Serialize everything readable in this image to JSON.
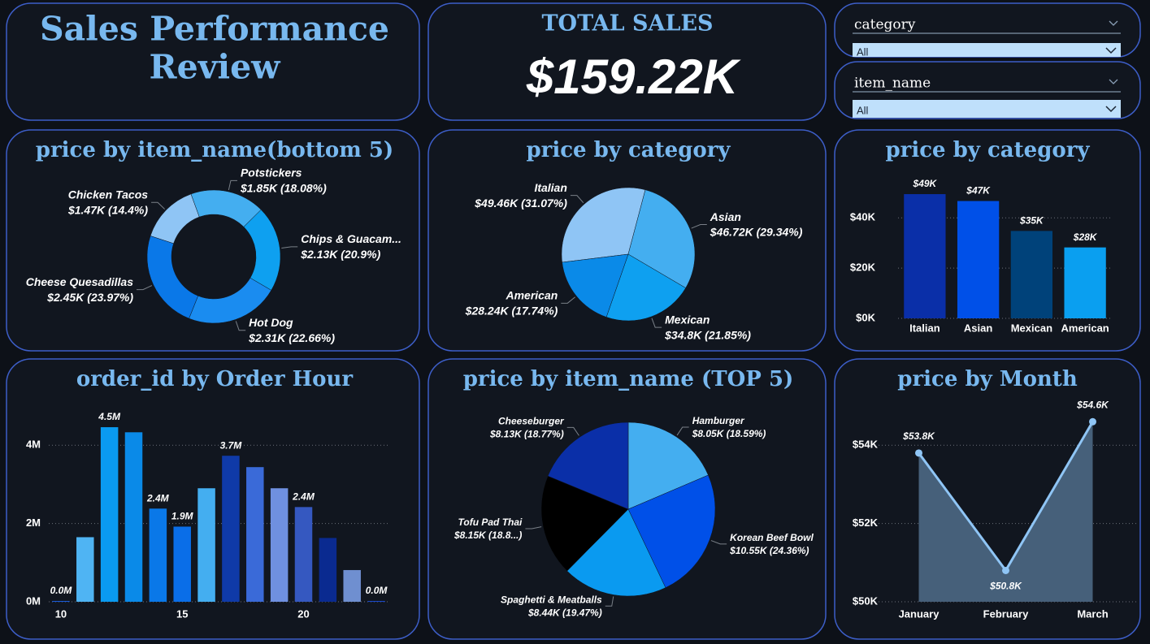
{
  "header": {
    "title": [
      "Sales Performance",
      "Review"
    ]
  },
  "kpi": {
    "label": "TOTAL SALES",
    "value": "$159.22K"
  },
  "slicers": [
    {
      "label": "category",
      "selected": "All"
    },
    {
      "label": "item_name",
      "selected": "All"
    }
  ],
  "chart_data": [
    {
      "type": "donut",
      "title": "price by item_name(bottom 5)",
      "categories": [
        "Potstickers",
        "Chips & Guacam...",
        "Hot Dog",
        "Cheese Quesadillas",
        "Chicken Tacos"
      ],
      "values": [
        1.85,
        2.13,
        2.31,
        2.45,
        1.47
      ],
      "value_labels": [
        "$1.85K (18.08%)",
        "$2.13K (20.9%)",
        "$2.31K (22.66%)",
        "$2.45K (23.97%)",
        "$1.47K (14.4%)"
      ],
      "colors": [
        "#44aef0",
        "#0ea0f0",
        "#1a8cf0",
        "#0a78e8",
        "#8fc5f5"
      ]
    },
    {
      "type": "pie",
      "title": "price by category",
      "categories": [
        "Italian",
        "Asian",
        "Mexican",
        "American"
      ],
      "values": [
        49.46,
        46.72,
        34.8,
        28.24
      ],
      "value_labels": [
        "$49.46K (31.07%)",
        "$46.72K (29.34%)",
        "$34.8K (21.85%)",
        "$28.24K (17.74%)"
      ],
      "colors": [
        "#8fc5f5",
        "#44aef0",
        "#0ea0f0",
        "#0a8ae8"
      ]
    },
    {
      "type": "bar",
      "title": "price by category",
      "categories": [
        "Italian",
        "Asian",
        "Mexican",
        "American"
      ],
      "values": [
        49.46,
        46.72,
        34.8,
        28.24
      ],
      "value_labels": [
        "$49K",
        "$47K",
        "$35K",
        "$28K"
      ],
      "colors": [
        "#0a2fa8",
        "#0050e8",
        "#00427a",
        "#0a9ff0"
      ],
      "ylim": [
        0,
        54
      ],
      "yticks": [
        {
          "value": 0,
          "label": "$0K"
        },
        {
          "value": 20,
          "label": "$20K"
        },
        {
          "value": 40,
          "label": "$40K"
        }
      ],
      "grid": true
    },
    {
      "type": "bar",
      "title": "order_id by Order Hour",
      "x": [
        10,
        11,
        12,
        13,
        14,
        15,
        16,
        17,
        18,
        19,
        20,
        21,
        22,
        23
      ],
      "values": [
        0.02,
        1.65,
        4.46,
        4.33,
        2.38,
        1.92,
        2.9,
        3.73,
        3.44,
        2.9,
        2.42,
        1.63,
        0.81,
        0.02
      ],
      "value_labels": [
        "0.0M",
        null,
        "4.5M",
        null,
        "2.4M",
        "1.9M",
        null,
        "3.7M",
        null,
        null,
        "2.4M",
        null,
        null,
        "0.0M"
      ],
      "colors": [
        "#1a5fe0",
        "#4fb4f3",
        "#0a9af0",
        "#0a8ae8",
        "#0a78e8",
        "#0a6ee8",
        "#44aef0",
        "#0f3aa8",
        "#3a6ad8",
        "#6f90e0",
        "#3558c0",
        "#0a2a90",
        "#6f8fd0",
        "#1a4ad0"
      ],
      "xlim": [
        9.5,
        23.5
      ],
      "xticks": [
        10,
        15,
        20
      ],
      "ylim": [
        0,
        5
      ],
      "yticks": [
        {
          "value": 0,
          "label": "0M"
        },
        {
          "value": 2,
          "label": "2M"
        },
        {
          "value": 4,
          "label": "4M"
        }
      ],
      "grid": true
    },
    {
      "type": "pie",
      "title": "price by item_name (TOP 5)",
      "categories": [
        "Hamburger",
        "Korean Beef Bowl",
        "Spaghetti & Meatballs",
        "Tofu Pad Thai",
        "Cheeseburger"
      ],
      "values": [
        8.05,
        10.55,
        8.44,
        8.15,
        8.13
      ],
      "value_labels": [
        "$8.05K (18.59%)",
        "$10.55K (24.36%)",
        "$8.44K (19.47%)",
        "$8.15K (18.8...)",
        "$8.13K (18.77%)"
      ],
      "colors": [
        "#44aef0",
        "#0050e8",
        "#0a9af0",
        "#000000",
        "#0a2fa8"
      ]
    },
    {
      "type": "line",
      "title": "price by Month",
      "categories": [
        "January",
        "February",
        "March"
      ],
      "values": [
        53.8,
        50.8,
        54.6
      ],
      "value_labels": [
        "$53.8K",
        "$50.8K",
        "$54.6K"
      ],
      "color": "#8fc5f5",
      "area_color": "#46607a",
      "ylim": [
        50,
        55
      ],
      "yticks": [
        {
          "value": 50,
          "label": "$50K"
        },
        {
          "value": 52,
          "label": "$52K"
        },
        {
          "value": 54,
          "label": "$54K"
        }
      ],
      "grid": true
    }
  ]
}
